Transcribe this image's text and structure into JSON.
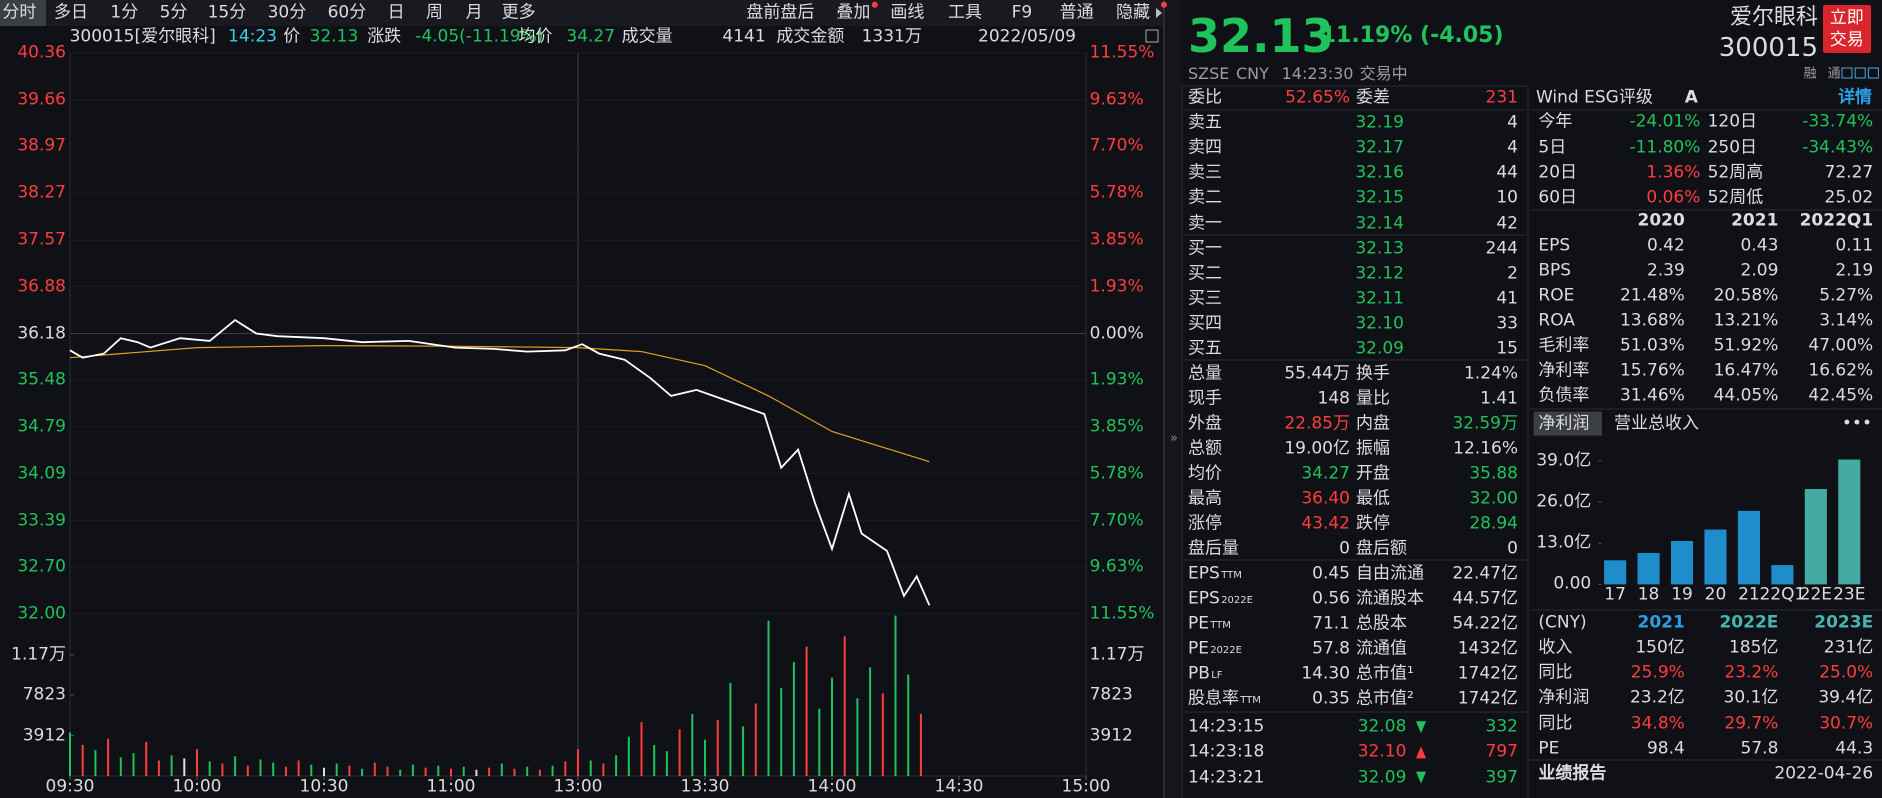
{
  "toolbar": {
    "left": [
      "分时",
      "多日",
      "1分",
      "5分",
      "15分",
      "30分",
      "60分",
      "日",
      "周",
      "月",
      "更多"
    ],
    "right": [
      "盘前盘后",
      "叠加",
      "画线",
      "工具",
      "F9",
      "普通",
      "隐藏"
    ]
  },
  "info": {
    "code_name": "300015[爱尔眼科]",
    "time": "14:23",
    "price_label": "价",
    "price": "32.13",
    "change_label": "涨跌",
    "change": "-4.05(-11.19%)",
    "avg_label": "均价",
    "avg": "34.27",
    "vol_label": "成交量",
    "vol": "4141",
    "amount_label": "成交金额",
    "amount": "1331万",
    "date": "2022/05/09"
  },
  "intraday": {
    "xlim": [
      0,
      240
    ],
    "xticks": [
      {
        "value": 0,
        "label": "09:30"
      },
      {
        "value": 30,
        "label": "10:00"
      },
      {
        "value": 60,
        "label": "10:30"
      },
      {
        "value": 90,
        "label": "11:00"
      },
      {
        "value": 120,
        "label": "13:00"
      },
      {
        "value": 150,
        "label": "13:30"
      },
      {
        "value": 180,
        "label": "14:00"
      },
      {
        "value": 210,
        "label": "14:30"
      },
      {
        "value": 240,
        "label": "15:00"
      }
    ],
    "ylim": [
      32,
      40.36
    ],
    "yticks": [
      40.36,
      39.66,
      38.97,
      38.27,
      37.57,
      36.88,
      36.18,
      35.48,
      34.79,
      34.09,
      33.39,
      {
        "value": 32.7,
        "label": "32.70"
      },
      {
        "value": 32,
        "label": "32.00"
      }
    ],
    "right_labels": [
      "11.55%",
      "9.63%",
      "7.70%",
      "5.78%",
      "3.85%",
      "1.93%",
      "0.00%",
      "1.93%",
      "3.85%",
      "5.78%",
      "7.70%",
      "9.63%",
      "11.55%"
    ],
    "price": {
      "color": "#ffffff",
      "x": [
        0,
        3,
        8,
        12,
        16,
        19,
        26,
        33,
        39,
        44,
        49,
        60,
        69,
        80,
        91,
        100,
        108,
        117,
        121,
        125,
        131,
        137,
        142,
        148,
        156,
        164,
        168,
        172,
        176,
        180,
        184,
        187,
        193,
        197,
        200,
        203
      ],
      "values": [
        35.93,
        35.82,
        35.88,
        36.11,
        36.05,
        35.97,
        36.11,
        36.07,
        36.38,
        36.18,
        36.14,
        36.11,
        36.05,
        36.07,
        35.97,
        35.95,
        35.91,
        35.93,
        36.02,
        35.88,
        35.79,
        35.52,
        35.25,
        35.34,
        35.16,
        34.98,
        34.18,
        34.45,
        33.65,
        32.97,
        33.79,
        33.2,
        32.94,
        32.27,
        32.56,
        32.13
      ]
    },
    "avg": {
      "color": "#e0a020",
      "x": [
        0,
        30,
        60,
        90,
        120,
        135,
        150,
        165,
        180,
        203
      ],
      "values": [
        35.82,
        35.97,
        36,
        35.99,
        35.97,
        35.91,
        35.7,
        35.25,
        34.72,
        34.27
      ]
    },
    "volume": {
      "ylim": [
        0,
        15650
      ],
      "yticks": [
        {
          "value": 11700,
          "label": "1.17万"
        },
        7823,
        3912
      ],
      "x": [
        0,
        3,
        6,
        9,
        12,
        15,
        18,
        21,
        24,
        27,
        30,
        33,
        36,
        39,
        42,
        45,
        48,
        51,
        54,
        57,
        60,
        63,
        66,
        69,
        72,
        75,
        78,
        81,
        84,
        87,
        90,
        93,
        96,
        99,
        102,
        105,
        108,
        111,
        114,
        117,
        120,
        123,
        126,
        129,
        132,
        135,
        138,
        141,
        144,
        147,
        150,
        153,
        156,
        159,
        162,
        165,
        168,
        171,
        174,
        177,
        180,
        183,
        186,
        189,
        192,
        195,
        198,
        201
      ],
      "values": [
        4200,
        3000,
        2500,
        3600,
        1800,
        2200,
        3300,
        1500,
        2000,
        1700,
        2600,
        1400,
        1200,
        1900,
        1000,
        1600,
        1300,
        900,
        1500,
        1100,
        800,
        1200,
        1000,
        700,
        1300,
        900,
        600,
        1100,
        800,
        1000,
        700,
        900,
        600,
        800,
        1200,
        700,
        900,
        600,
        1000,
        1400,
        2600,
        1500,
        1200,
        2000,
        3800,
        5200,
        3000,
        2400,
        4500,
        6000,
        3500,
        5400,
        9000,
        4800,
        7000,
        15000,
        8500,
        11000,
        12500,
        6500,
        9500,
        13500,
        7500,
        10500,
        8000,
        15500,
        9800,
        6000
      ],
      "dirs": [
        "d",
        "u",
        "d",
        "u",
        "d",
        "d",
        "u",
        "u",
        "d",
        "f",
        "u",
        "d",
        "u",
        "d",
        "u",
        "d",
        "d",
        "u",
        "u",
        "d",
        "f",
        "d",
        "u",
        "d",
        "u",
        "u",
        "d",
        "d",
        "u",
        "d",
        "u",
        "d",
        "f",
        "u",
        "d",
        "u",
        "d",
        "u",
        "d",
        "u",
        "u",
        "d",
        "u",
        "d",
        "d",
        "u",
        "d",
        "d",
        "u",
        "d",
        "d",
        "u",
        "d",
        "d",
        "u",
        "d",
        "d",
        "d",
        "u",
        "d",
        "d",
        "u",
        "d",
        "d",
        "u",
        "d",
        "d",
        "u"
      ]
    }
  },
  "quote": {
    "price": "32.13",
    "change": "-11.19% (-4.05)",
    "name": "爱尔眼科",
    "code": "300015",
    "button": "立即交易",
    "exchange": "SZSE",
    "currency": "CNY",
    "time": "14:23:30",
    "status": "交易中",
    "tags": [
      "融",
      "通"
    ]
  },
  "ratio": {
    "rows": [
      [
        "委比",
        "52.65%",
        "委差",
        "231"
      ]
    ],
    "colors": [
      "wrwr"
    ]
  },
  "asks": {
    "rows": [
      [
        "卖五",
        "32.19",
        "4"
      ],
      [
        "卖四",
        "32.17",
        "4"
      ],
      [
        "卖三",
        "32.16",
        "44"
      ],
      [
        "卖二",
        "32.15",
        "10"
      ],
      [
        "卖一",
        "32.14",
        "42"
      ]
    ],
    "colors": [
      "wgw",
      "wgw",
      "wgw",
      "wgw",
      "wgw"
    ]
  },
  "bids": {
    "rows": [
      [
        "买一",
        "32.13",
        "244"
      ],
      [
        "买二",
        "32.12",
        "2"
      ],
      [
        "买三",
        "32.11",
        "41"
      ],
      [
        "买四",
        "32.10",
        "33"
      ],
      [
        "买五",
        "32.09",
        "15"
      ]
    ],
    "colors": [
      "wgw",
      "wgw",
      "wgw",
      "wgw",
      "wgw"
    ]
  },
  "stats": {
    "rows": [
      [
        "总量",
        "55.44万",
        "换手",
        "1.24%"
      ],
      [
        "现手",
        "148",
        "量比",
        "1.41"
      ],
      [
        "外盘",
        "22.85万",
        "内盘",
        "32.59万"
      ],
      [
        "总额",
        "19.00亿",
        "振幅",
        "12.16%"
      ],
      [
        "均价",
        "34.27",
        "开盘",
        "35.88"
      ],
      [
        "最高",
        "36.40",
        "最低",
        "32.00"
      ],
      [
        "涨停",
        "43.42",
        "跌停",
        "28.94"
      ],
      [
        "盘后量",
        "0",
        "盘后额",
        "0"
      ]
    ],
    "colors": [
      "wwww",
      "wwww",
      "wrwg",
      "wwww",
      "wgwg",
      "wrwg",
      "wrwg",
      "wwww"
    ]
  },
  "valuation": {
    "rows": [
      [
        "EPS",
        "TTM",
        "0.45",
        "自由流通",
        "22.47亿"
      ],
      [
        "EPS",
        "2022E",
        "0.56",
        "流通股本",
        "44.57亿"
      ],
      [
        "PE",
        "TTM",
        "71.1",
        "总股本",
        "54.22亿"
      ],
      [
        "PE",
        "2022E",
        "57.8",
        "流通值",
        "1432亿"
      ],
      [
        "PB",
        "LF",
        "14.30",
        "总市值¹",
        "1742亿"
      ],
      [
        "股息率",
        "TTM",
        "0.35",
        "总市值²",
        "1742亿"
      ]
    ]
  },
  "ticks": {
    "rows": [
      [
        "14:23:15",
        "32.08",
        "down",
        "332"
      ],
      [
        "14:23:18",
        "32.10",
        "up",
        "797"
      ],
      [
        "14:23:21",
        "32.09",
        "down",
        "397"
      ]
    ]
  },
  "esg": {
    "label": "Wind ESG评级",
    "rating": "A",
    "link": "详情"
  },
  "perf": {
    "rows": [
      [
        "今年",
        "-24.01%",
        "120日",
        "-33.74%"
      ],
      [
        "5日",
        "-11.80%",
        "250日",
        "-34.43%"
      ],
      [
        "20日",
        "1.36%",
        "52周高",
        "72.27"
      ],
      [
        "60日",
        "0.06%",
        "52周低",
        "25.02"
      ]
    ],
    "colors": [
      "wgwg",
      "wgwg",
      "wrww",
      "wrww"
    ]
  },
  "fin": {
    "header": [
      "2020",
      "2021",
      "2022Q1"
    ],
    "rows": [
      [
        "EPS",
        "0.42",
        "0.43",
        "0.11"
      ],
      [
        "BPS",
        "2.39",
        "2.09",
        "2.19"
      ],
      [
        "ROE",
        "21.48%",
        "20.58%",
        "5.27%"
      ],
      [
        "ROA",
        "13.68%",
        "13.21%",
        "3.14%"
      ],
      [
        "毛利率",
        "51.03%",
        "51.92%",
        "47.00%"
      ],
      [
        "净利率",
        "15.76%",
        "16.47%",
        "16.62%"
      ],
      [
        "负债率",
        "31.46%",
        "44.05%",
        "42.45%"
      ]
    ]
  },
  "profit_chart": {
    "type": "bar",
    "tabs": [
      "净利润",
      "营业总收入"
    ],
    "more": "•••",
    "categories": [
      "17",
      "18",
      "19",
      "20",
      "21",
      "22Q1",
      "22E",
      "23E"
    ],
    "values": [
      7.6,
      9.9,
      13.7,
      17.3,
      23.2,
      6.1,
      30.1,
      39.4
    ],
    "colors": [
      "#1f8ccc",
      "#1f8ccc",
      "#1f8ccc",
      "#1f8ccc",
      "#1f8ccc",
      "#1f8ccc",
      "#45aaa2",
      "#45aaa2"
    ],
    "ylim": [
      0,
      39
    ],
    "yticks": [
      {
        "value": 0,
        "label": "0.00"
      },
      {
        "value": 13,
        "label": "13.0亿"
      },
      {
        "value": 26,
        "label": "26.0亿"
      },
      {
        "value": 39,
        "label": "39.0亿"
      }
    ]
  },
  "forecast": {
    "header": [
      "(CNY)",
      "2021",
      "2022E",
      "2023E"
    ],
    "header_colors": "wbtt",
    "rows": [
      [
        "收入",
        "150亿",
        "185亿",
        "231亿"
      ],
      [
        "同比",
        "25.9%",
        "23.2%",
        "25.0%"
      ],
      [
        "净利润",
        "23.2亿",
        "30.1亿",
        "39.4亿"
      ],
      [
        "同比",
        "34.8%",
        "29.7%",
        "30.7%"
      ],
      [
        "PE",
        "98.4",
        "57.8",
        "44.3"
      ]
    ],
    "colors": [
      "wwww",
      "wrrr",
      "wwww",
      "wrrr",
      "wwww"
    ]
  },
  "report": {
    "label": "业绩报告",
    "date": "2022-04-26"
  }
}
